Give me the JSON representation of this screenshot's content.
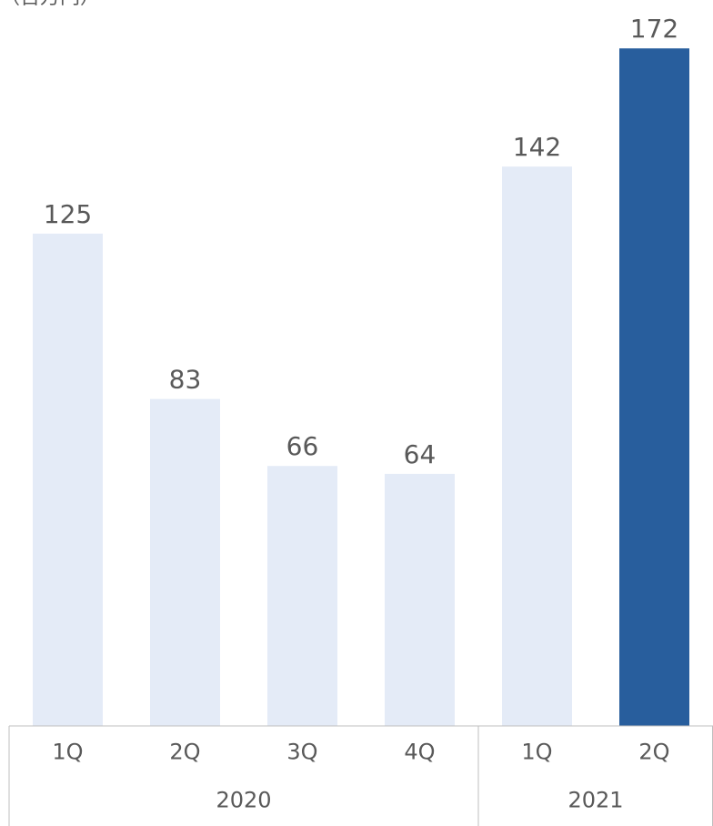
{
  "unit_label": "（百万円）",
  "colors": {
    "bar_default": "#e4ebf7",
    "bar_highlight": "#285e9d",
    "axis": "#bfbfbf",
    "text": "#595959"
  },
  "chart_data": {
    "type": "bar",
    "title": "",
    "xlabel": "",
    "ylabel": "",
    "ylim": [
      0,
      180
    ],
    "grid": false,
    "legend": "none",
    "data_labels": true,
    "categories": [
      "1Q",
      "2Q",
      "3Q",
      "4Q",
      "1Q",
      "2Q"
    ],
    "groups": [
      {
        "label": "2020",
        "span": [
          0,
          3
        ]
      },
      {
        "label": "2021",
        "span": [
          4,
          5
        ]
      }
    ],
    "values": [
      125,
      83,
      66,
      64,
      142,
      172
    ],
    "highlight_index": 5
  }
}
